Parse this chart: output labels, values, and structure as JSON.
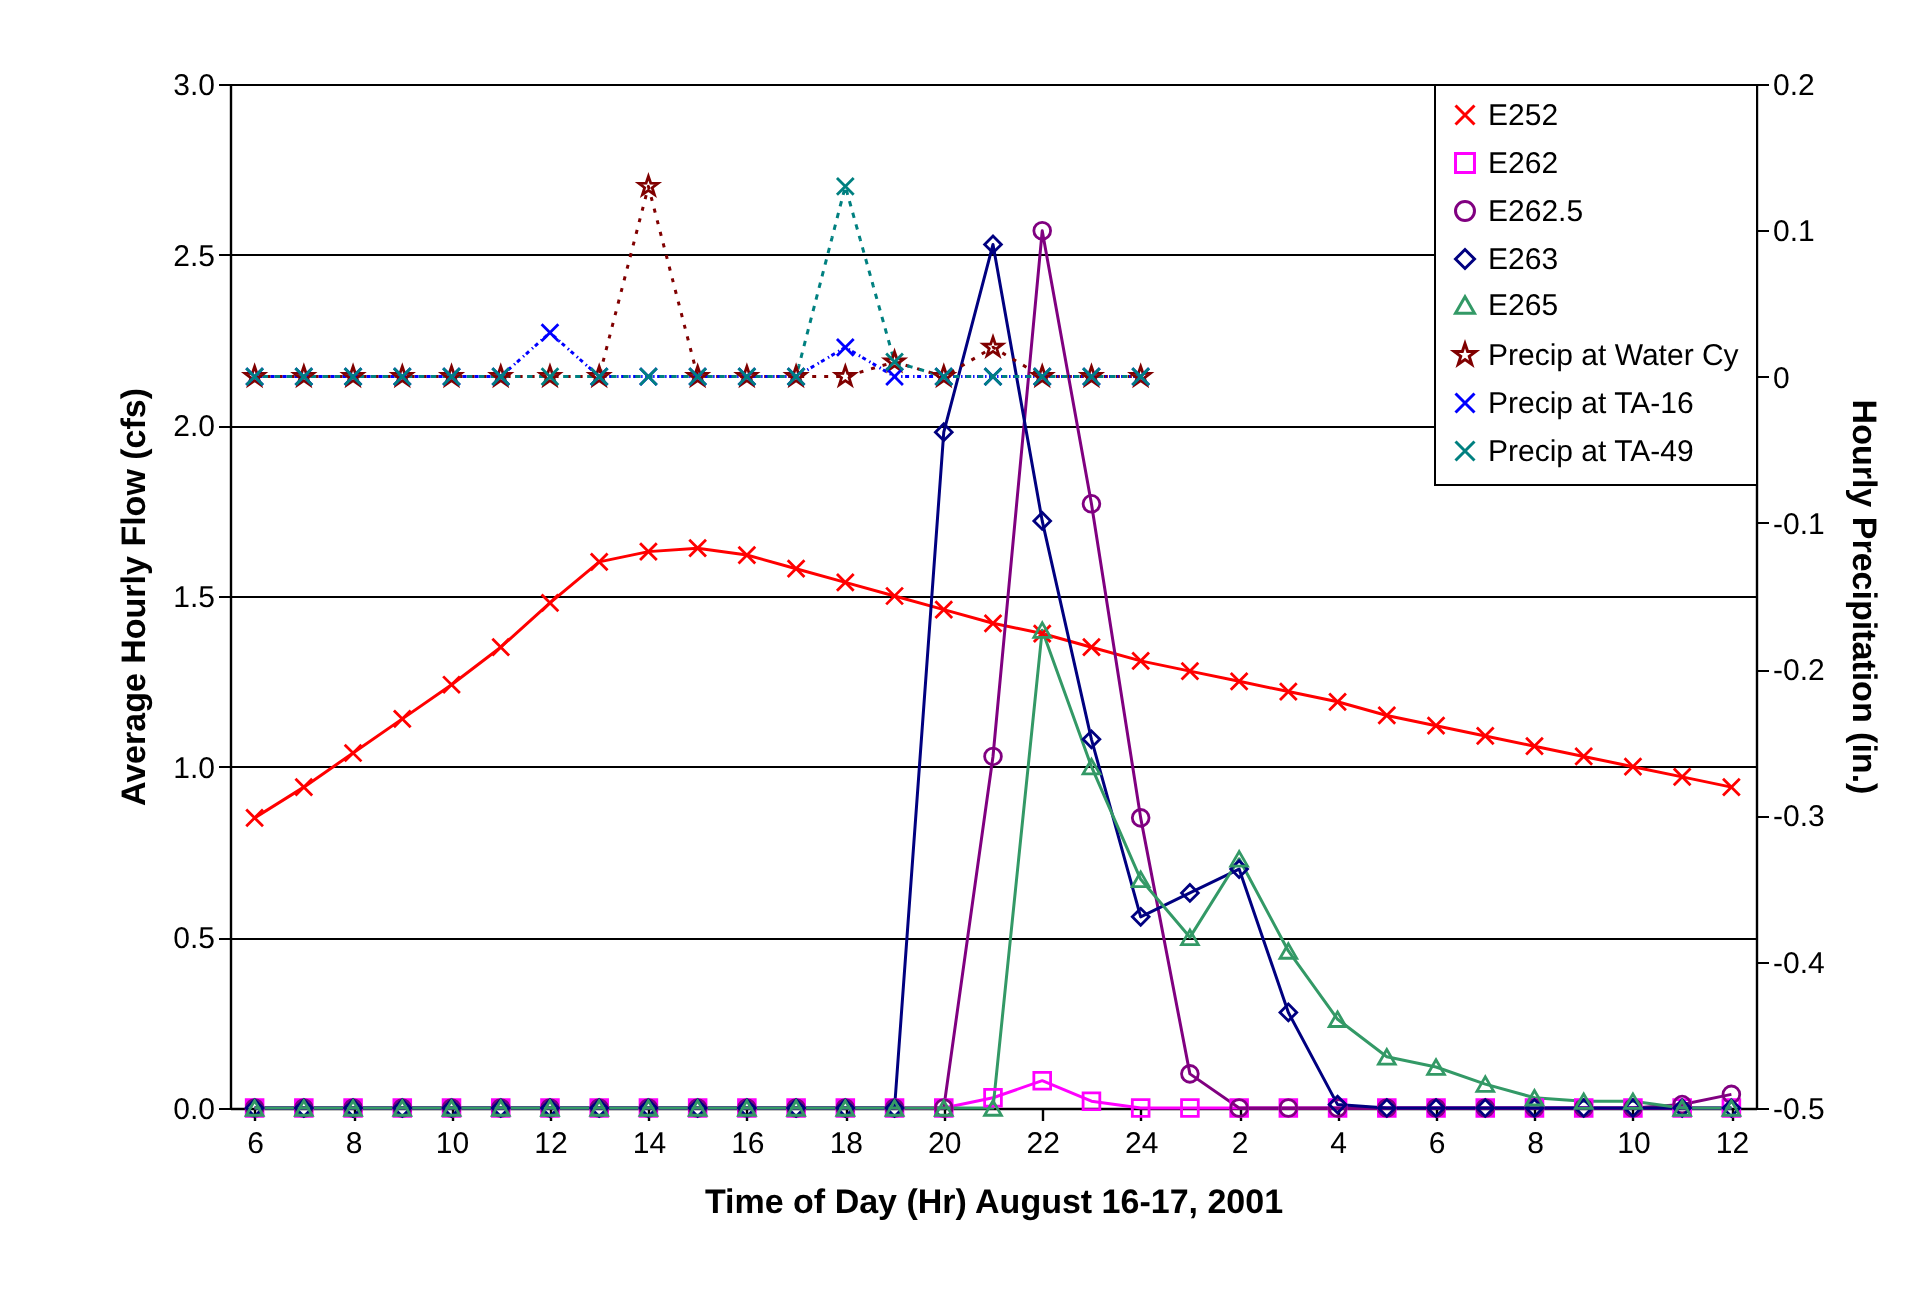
{
  "chart_data": {
    "type": "line",
    "xlabel": "Time of Day (Hr) August 16-17, 2001",
    "ylabel": "Average Hourly Flow (cfs)",
    "y2label": "Hourly Precipitation (in.)",
    "x": [
      "2001-08-16T06:00",
      "2001-08-16T07:00",
      "2001-08-16T08:00",
      "2001-08-16T09:00",
      "2001-08-16T10:00",
      "2001-08-16T11:00",
      "2001-08-16T12:00",
      "2001-08-16T13:00",
      "2001-08-16T14:00",
      "2001-08-16T15:00",
      "2001-08-16T16:00",
      "2001-08-16T17:00",
      "2001-08-16T18:00",
      "2001-08-16T19:00",
      "2001-08-16T20:00",
      "2001-08-16T21:00",
      "2001-08-16T22:00",
      "2001-08-16T23:00",
      "2001-08-17T00:00",
      "2001-08-17T01:00",
      "2001-08-17T02:00",
      "2001-08-17T03:00",
      "2001-08-17T04:00",
      "2001-08-17T05:00",
      "2001-08-17T06:00",
      "2001-08-17T07:00",
      "2001-08-17T08:00",
      "2001-08-17T09:00",
      "2001-08-17T10:00",
      "2001-08-17T11:00",
      "2001-08-17T12:00"
    ],
    "xlim": [
      "2001-08-16T05:30",
      "2001-08-17T12:30"
    ],
    "xticks": [
      {
        "value": "2001-08-16T06:00",
        "label": "6"
      },
      {
        "value": "2001-08-16T08:00",
        "label": "8"
      },
      {
        "value": "2001-08-16T10:00",
        "label": "10"
      },
      {
        "value": "2001-08-16T12:00",
        "label": "12"
      },
      {
        "value": "2001-08-16T14:00",
        "label": "14"
      },
      {
        "value": "2001-08-16T16:00",
        "label": "16"
      },
      {
        "value": "2001-08-16T18:00",
        "label": "18"
      },
      {
        "value": "2001-08-16T20:00",
        "label": "20"
      },
      {
        "value": "2001-08-16T22:00",
        "label": "22"
      },
      {
        "value": "2001-08-17T00:00",
        "label": "24"
      },
      {
        "value": "2001-08-17T02:00",
        "label": "2"
      },
      {
        "value": "2001-08-17T04:00",
        "label": "4"
      },
      {
        "value": "2001-08-17T06:00",
        "label": "6"
      },
      {
        "value": "2001-08-17T08:00",
        "label": "8"
      },
      {
        "value": "2001-08-17T10:00",
        "label": "10"
      },
      {
        "value": "2001-08-17T12:00",
        "label": "12"
      }
    ],
    "ylim": [
      0,
      3
    ],
    "yticks": [
      {
        "value": 0,
        "label": "0.0"
      },
      0.5,
      {
        "value": 1,
        "label": "1.0"
      },
      1.5,
      {
        "value": 2,
        "label": "2.0"
      },
      2.5,
      {
        "value": 3,
        "label": "3.0"
      }
    ],
    "y2lim": [
      -0.5,
      0.2
    ],
    "y2ticks": [
      -0.5,
      -0.4,
      -0.3,
      -0.2,
      -0.1,
      0,
      0.1,
      0.2
    ],
    "grid": "y",
    "legend": "top right",
    "series": [
      {
        "name": "E252",
        "color": "#ff0000",
        "marker": "cross",
        "line_style": "solid",
        "values": [
          0.85,
          0.94,
          1.04,
          1.14,
          1.24,
          1.35,
          1.48,
          1.6,
          1.63,
          1.64,
          1.62,
          1.58,
          1.54,
          1.5,
          1.46,
          1.42,
          1.39,
          1.35,
          1.31,
          1.28,
          1.25,
          1.22,
          1.19,
          1.15,
          1.12,
          1.09,
          1.06,
          1.03,
          1.0,
          0.97,
          0.94
        ]
      },
      {
        "name": "E262",
        "color": "#ff00ff",
        "marker": "square",
        "line_style": "solid",
        "values": [
          0,
          0,
          0,
          0,
          0,
          0,
          0,
          0,
          0,
          0,
          0,
          0,
          0,
          0,
          0,
          0.03,
          0.08,
          0.02,
          0,
          0,
          0,
          0,
          0,
          0,
          0,
          0,
          0,
          0,
          0,
          0,
          0
        ]
      },
      {
        "name": "E262.5",
        "color": "#800080",
        "marker": "circle",
        "line_style": "solid",
        "values": [
          0,
          0,
          0,
          0,
          0,
          0,
          0,
          0,
          0,
          0,
          0,
          0,
          0,
          0,
          0,
          1.03,
          2.57,
          1.77,
          0.85,
          0.1,
          0,
          0,
          0,
          0,
          0,
          0,
          0,
          0,
          0,
          0.01,
          0.04
        ]
      },
      {
        "name": "E263",
        "color": "#000080",
        "marker": "diamond",
        "line_style": "solid",
        "values": [
          0,
          0,
          0,
          0,
          0,
          0,
          0,
          0,
          0,
          0,
          0,
          0,
          0,
          0,
          1.98,
          2.53,
          1.72,
          1.08,
          0.56,
          0.63,
          0.7,
          0.28,
          0.01,
          0,
          0,
          0,
          0,
          0,
          0,
          0,
          0
        ]
      },
      {
        "name": "E265",
        "color": "#339966",
        "marker": "triangle",
        "line_style": "solid",
        "values": [
          0,
          0,
          0,
          0,
          0,
          0,
          0,
          0,
          0,
          0,
          0,
          0,
          0,
          0,
          0,
          0,
          1.4,
          1.0,
          0.67,
          0.5,
          0.73,
          0.46,
          0.26,
          0.15,
          0.12,
          0.07,
          0.03,
          0.02,
          0.02,
          0,
          0
        ]
      },
      {
        "name": "Precip at Water Cy",
        "color": "#800000",
        "marker": "star",
        "line_style": "dotted",
        "axis": "y2",
        "x": [
          "2001-08-16T06:00",
          "2001-08-16T07:00",
          "2001-08-16T08:00",
          "2001-08-16T09:00",
          "2001-08-16T10:00",
          "2001-08-16T11:00",
          "2001-08-16T12:00",
          "2001-08-16T13:00",
          "2001-08-16T14:00",
          "2001-08-16T15:00",
          "2001-08-16T16:00",
          "2001-08-16T17:00",
          "2001-08-16T18:00",
          "2001-08-16T19:00",
          "2001-08-16T20:00",
          "2001-08-16T21:00",
          "2001-08-16T22:00",
          "2001-08-16T23:00",
          "2001-08-17T00:00"
        ],
        "values": [
          0,
          0,
          0,
          0,
          0,
          0,
          0,
          0,
          0.13,
          0,
          0,
          0,
          0,
          0.01,
          0,
          0.02,
          0,
          0,
          0
        ]
      },
      {
        "name": "Precip at TA-16",
        "color": "#0000ff",
        "marker": "cross",
        "line_style": "dotted",
        "axis": "y2",
        "x": [
          "2001-08-16T06:00",
          "2001-08-16T07:00",
          "2001-08-16T08:00",
          "2001-08-16T09:00",
          "2001-08-16T10:00",
          "2001-08-16T11:00",
          "2001-08-16T12:00",
          "2001-08-16T13:00",
          "2001-08-16T14:00",
          "2001-08-16T15:00",
          "2001-08-16T16:00",
          "2001-08-16T17:00",
          "2001-08-16T18:00",
          "2001-08-16T19:00",
          "2001-08-16T20:00",
          "2001-08-16T21:00",
          "2001-08-16T22:00",
          "2001-08-16T23:00",
          "2001-08-17T00:00"
        ],
        "values": [
          0,
          0,
          0,
          0,
          0,
          0,
          0.03,
          0,
          0,
          0,
          0,
          0,
          0.02,
          0,
          0,
          0,
          0,
          0,
          0
        ]
      },
      {
        "name": "Precip at TA-49",
        "color": "#008080",
        "marker": "cross",
        "line_style": "dotted",
        "axis": "y2",
        "x": [
          "2001-08-16T06:00",
          "2001-08-16T07:00",
          "2001-08-16T08:00",
          "2001-08-16T09:00",
          "2001-08-16T10:00",
          "2001-08-16T11:00",
          "2001-08-16T12:00",
          "2001-08-16T13:00",
          "2001-08-16T14:00",
          "2001-08-16T15:00",
          "2001-08-16T16:00",
          "2001-08-16T17:00",
          "2001-08-16T18:00",
          "2001-08-16T19:00",
          "2001-08-16T20:00",
          "2001-08-16T21:00",
          "2001-08-16T22:00",
          "2001-08-16T23:00",
          "2001-08-17T00:00"
        ],
        "values": [
          0,
          0,
          0,
          0,
          0,
          0,
          0,
          0,
          0,
          0,
          0,
          0,
          0.13,
          0.01,
          0,
          0,
          0,
          0,
          0
        ]
      }
    ]
  }
}
